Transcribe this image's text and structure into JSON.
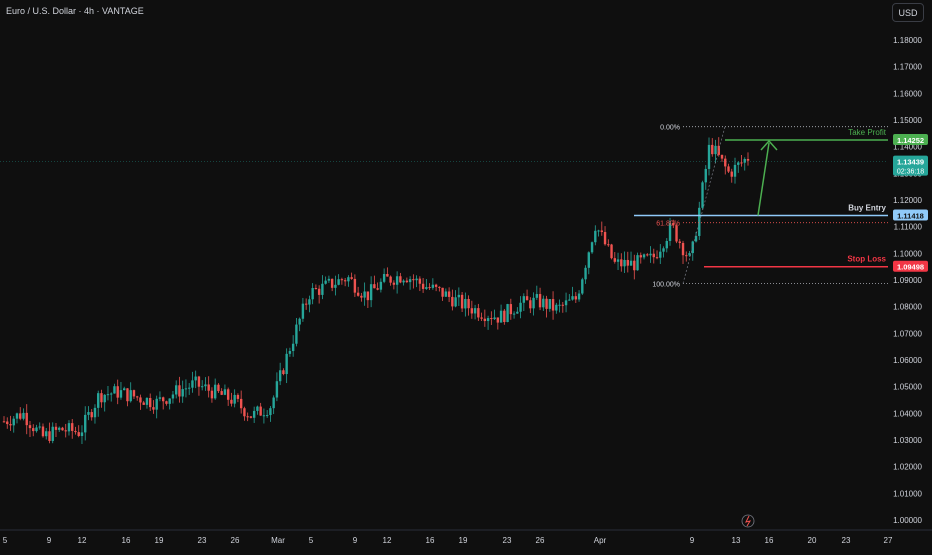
{
  "header": {
    "title": "Euro / U.S. Dollar · 4h · VANTAGE",
    "currency_button": "USD"
  },
  "colors": {
    "background": "#0f0f0f",
    "up": "#26a69a",
    "down": "#ef5350",
    "take_profit": "#4caf50",
    "stop_loss": "#f23645",
    "entry": "#90caf9",
    "text": "#d1d4dc"
  },
  "icons": {
    "lightning": "lightning-icon"
  },
  "chart_data": {
    "type": "candlestick",
    "title": "Euro / U.S. Dollar · 4h · VANTAGE",
    "y_axis": {
      "range": [
        0.995,
        1.19
      ],
      "ticks": [
        1.0,
        1.01,
        1.02,
        1.03,
        1.04,
        1.05,
        1.06,
        1.07,
        1.08,
        1.09,
        1.1,
        1.11,
        1.12,
        1.13,
        1.14,
        1.15,
        1.16,
        1.17,
        1.18
      ],
      "tick_labels": [
        "1.00000",
        "1.01000",
        "1.02000",
        "1.03000",
        "1.04000",
        "1.05000",
        "1.06000",
        "1.07000",
        "1.08000",
        "1.09000",
        "1.10000",
        "1.11000",
        "1.12000",
        "1.13000",
        "1.14000",
        "1.15000",
        "1.16000",
        "1.17000",
        "1.18000"
      ]
    },
    "x_axis": {
      "tick_labels": [
        "5",
        "9",
        "12",
        "16",
        "19",
        "23",
        "26",
        "Mar",
        "5",
        "9",
        "12",
        "16",
        "19",
        "23",
        "26",
        "Apr",
        "9",
        "13",
        "16",
        "20",
        "23",
        "27"
      ]
    },
    "price_path": [
      [
        1.037,
        1.039
      ],
      [
        1.04,
        1.032
      ],
      [
        1.031,
        1.028
      ],
      [
        1.034,
        1.036
      ],
      [
        1.033,
        1.044
      ],
      [
        1.047,
        1.052
      ],
      [
        1.048,
        1.049
      ],
      [
        1.046,
        1.045
      ],
      [
        1.044,
        1.049
      ],
      [
        1.048,
        1.045
      ],
      [
        1.051,
        1.047
      ],
      [
        1.048,
        1.052
      ],
      [
        1.045,
        1.04
      ],
      [
        1.039,
        1.037
      ],
      [
        1.043,
        1.055
      ],
      [
        1.065,
        1.08
      ],
      [
        1.085,
        1.082
      ],
      [
        1.088,
        1.092
      ],
      [
        1.091,
        1.086
      ],
      [
        1.084,
        1.088
      ],
      [
        1.09,
        1.086
      ],
      [
        1.092,
        1.093
      ],
      [
        1.088,
        1.09
      ],
      [
        1.085,
        1.083
      ],
      [
        1.081,
        1.079
      ],
      [
        1.078,
        1.08
      ],
      [
        1.076,
        1.077
      ],
      [
        1.081,
        1.085
      ],
      [
        1.082,
        1.08
      ],
      [
        1.079,
        1.078
      ],
      [
        1.083,
        1.098
      ],
      [
        1.111,
        1.1
      ],
      [
        1.096,
        1.092
      ],
      [
        1.096,
        1.09
      ],
      [
        1.098,
        1.11
      ],
      [
        1.11,
        1.095
      ],
      [
        1.097,
        1.122
      ],
      [
        1.141,
        1.137
      ],
      [
        1.13,
        1.138
      ],
      [
        1.136,
        1.133
      ]
    ],
    "series": [
      {
        "type": "candlestick"
      }
    ],
    "current_price": 1.13439,
    "countdown": "02:36:18",
    "trade_setup": {
      "take_profit": {
        "label": "Take Profit",
        "price": 1.14252,
        "price_label": "1.14252"
      },
      "buy_entry": {
        "label": "Buy Entry",
        "price": 1.11418,
        "price_label": "1.11418"
      },
      "stop_loss": {
        "label": "Stop Loss",
        "price": 1.09498,
        "price_label": "1.09498"
      },
      "current_label": "1.13439"
    },
    "fibonacci": [
      {
        "label": "0.00%",
        "price": 1.1475
      },
      {
        "label": "61.80%",
        "price": 1.1115
      },
      {
        "label": "100.00%",
        "price": 1.0887
      }
    ],
    "grid": false
  }
}
